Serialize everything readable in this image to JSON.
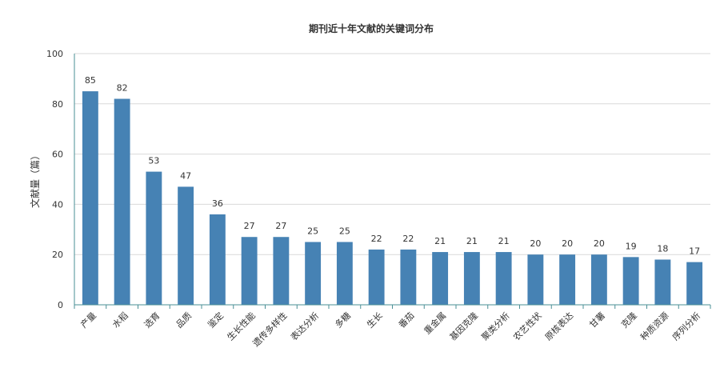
{
  "chart_data": {
    "type": "bar",
    "title": "期刊近十年文献的关键词分布",
    "ylabel": "文献量（篇）",
    "xlabel": "",
    "ylim": [
      0,
      100
    ],
    "yticks": [
      0,
      20,
      40,
      60,
      80,
      100
    ],
    "grid": true,
    "bar_color": "#4682b4",
    "axis_color": "#4a8f96",
    "categories": [
      "产量",
      "水稻",
      "选育",
      "品质",
      "鉴定",
      "生长性能",
      "遗传多样性",
      "表达分析",
      "多糖",
      "生长",
      "番茄",
      "重金属",
      "基因克隆",
      "聚类分析",
      "农艺性状",
      "原核表达",
      "甘薯",
      "克隆",
      "种质资源",
      "序列分析"
    ],
    "values": [
      85,
      82,
      53,
      47,
      36,
      27,
      27,
      25,
      25,
      22,
      22,
      21,
      21,
      21,
      20,
      20,
      20,
      19,
      18,
      17
    ]
  }
}
